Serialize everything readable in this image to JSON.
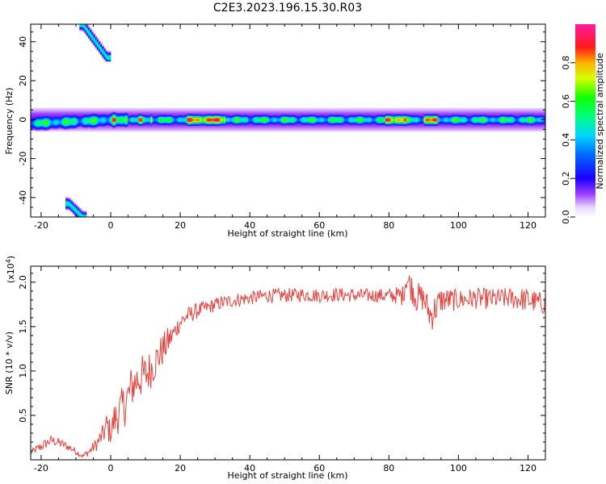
{
  "title": "C2E3.2023.196.15.30.R03",
  "chart_data": [
    {
      "type": "heatmap",
      "xlabel": "Height of straight line (km)",
      "ylabel": "Frequency (Hz)",
      "xlim": [
        -23,
        125
      ],
      "ylim": [
        -50,
        49
      ],
      "x_ticks": [
        -20,
        0,
        20,
        40,
        60,
        80,
        100,
        120
      ],
      "x_tick_labels": [
        "-20",
        "0",
        "20",
        "40",
        "60",
        "80",
        "100",
        "120"
      ],
      "y_ticks": [
        -40,
        -20,
        0,
        20,
        40
      ],
      "y_tick_labels": [
        "-40",
        "-20",
        "0",
        "20",
        "40"
      ],
      "colorbar": {
        "label": "Normalized spectral amplitude",
        "range": [
          0.0,
          1.0
        ],
        "ticks": [
          0.0,
          0.2,
          0.4,
          0.6,
          0.8
        ],
        "tick_labels": [
          "0.0",
          "0.2",
          "0.4",
          "0.6",
          "0.8"
        ],
        "colormap": "rainbow (white, purple, blue, cyan, green, yellow, red, magenta)"
      },
      "features": [
        {
          "name": "main band",
          "x_range": [
            -23,
            125
          ],
          "frequency_hz": 0,
          "typical_amplitude": 0.5,
          "peak_amplitude": 0.9
        },
        {
          "name": "upper aliased branch",
          "x_range": [
            -8,
            -1
          ],
          "frequency_hz_range": [
            49,
            32
          ],
          "peak_amplitude": 0.5
        },
        {
          "name": "lower aliased branch",
          "x_range": [
            -12,
            -8
          ],
          "frequency_hz_range": [
            -43,
            -50
          ],
          "peak_amplitude": 0.5
        }
      ]
    },
    {
      "type": "line",
      "xlabel": "Height of straight line (km)",
      "ylabel": "SNR (10 * v/v)",
      "y_multiplier": "(x10^4)",
      "xlim": [
        -23,
        125
      ],
      "ylim": [
        0,
        2.18
      ],
      "x_ticks": [
        -20,
        0,
        20,
        40,
        60,
        80,
        100,
        120
      ],
      "x_tick_labels": [
        "-20",
        "0",
        "20",
        "40",
        "60",
        "80",
        "100",
        "120"
      ],
      "y_ticks": [
        0.5,
        1.0,
        1.5,
        2.0
      ],
      "y_tick_labels": [
        "0.5",
        "1.0",
        "1.5",
        "2.0"
      ],
      "series_color": "#e8413c",
      "x": [
        -23,
        -20,
        -17,
        -14,
        -11,
        -8,
        -6,
        -4,
        -2,
        -1,
        0,
        1,
        2,
        3,
        4,
        5,
        6,
        8,
        10,
        12,
        14,
        16,
        18,
        20,
        22,
        25,
        28,
        32,
        36,
        40,
        45,
        50,
        55,
        60,
        65,
        70,
        75,
        80,
        84,
        85,
        88,
        90,
        92,
        95,
        100,
        105,
        110,
        115,
        120,
        125
      ],
      "y": [
        0.08,
        0.15,
        0.22,
        0.18,
        0.12,
        0.04,
        0.1,
        0.18,
        0.3,
        0.38,
        0.3,
        0.45,
        0.5,
        0.58,
        0.62,
        0.7,
        0.82,
        0.92,
        0.95,
        1.05,
        1.18,
        1.3,
        1.42,
        1.55,
        1.62,
        1.68,
        1.72,
        1.77,
        1.8,
        1.82,
        1.85,
        1.85,
        1.86,
        1.85,
        1.86,
        1.85,
        1.85,
        1.85,
        1.85,
        2.05,
        1.83,
        1.82,
        1.62,
        1.8,
        1.8,
        1.82,
        1.81,
        1.82,
        1.8,
        1.75
      ],
      "noise_amplitude": [
        0.03,
        0.06,
        0.06,
        0.05,
        0.04,
        0.03,
        0.05,
        0.08,
        0.12,
        0.2,
        0.12,
        0.2,
        0.22,
        0.22,
        0.25,
        0.28,
        0.25,
        0.25,
        0.25,
        0.22,
        0.2,
        0.18,
        0.12,
        0.1,
        0.1,
        0.09,
        0.08,
        0.08,
        0.08,
        0.08,
        0.08,
        0.08,
        0.08,
        0.08,
        0.08,
        0.08,
        0.08,
        0.08,
        0.12,
        0.15,
        0.18,
        0.15,
        0.2,
        0.15,
        0.12,
        0.12,
        0.12,
        0.12,
        0.14,
        0.12
      ]
    }
  ]
}
